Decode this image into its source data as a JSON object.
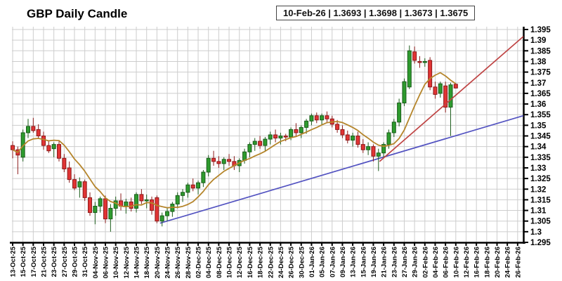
{
  "header": {
    "title": "GBP Daily Candle"
  },
  "quote_box": {
    "date": "10-Feb-26",
    "open": "1.3693",
    "high": "1.3698",
    "low": "1.3673",
    "close": "1.3675",
    "display": "10-Feb-26 | 1.3693 | 1.3698 | 1.3673 | 1.3675"
  },
  "chart_data": {
    "type": "candlestick",
    "title": "GBP Daily Candle",
    "grid": true,
    "y_axis": {
      "side": "right",
      "min": 1.295,
      "max": 1.395,
      "step": 0.005,
      "tick_labels": [
        "1.395",
        "1.39",
        "1.385",
        "1.38",
        "1.375",
        "1.37",
        "1.365",
        "1.36",
        "1.355",
        "1.35",
        "1.345",
        "1.34",
        "1.335",
        "1.33",
        "1.325",
        "1.32",
        "1.315",
        "1.31",
        "1.305",
        "1.3",
        "1.295"
      ]
    },
    "x_labels": [
      "13-Oct-25",
      "15-Oct-25",
      "17-Oct-25",
      "21-Oct-25",
      "23-Oct-25",
      "27-Oct-25",
      "29-Oct-25",
      "31-Oct-25",
      "04-Nov-25",
      "06-Nov-25",
      "10-Nov-25",
      "12-Nov-25",
      "14-Nov-25",
      "18-Nov-25",
      "20-Nov-25",
      "24-Nov-25",
      "26-Nov-25",
      "28-Nov-25",
      "02-Dec-25",
      "04-Dec-25",
      "08-Dec-25",
      "10-Dec-25",
      "12-Dec-25",
      "16-Dec-25",
      "18-Dec-25",
      "22-Dec-25",
      "24-Dec-25",
      "26-Dec-25",
      "30-Dec-25",
      "01-Jan-26",
      "05-Jan-26",
      "07-Jan-26",
      "09-Jan-26",
      "13-Jan-26",
      "15-Jan-26",
      "19-Jan-26",
      "21-Jan-26",
      "23-Jan-26",
      "27-Jan-26",
      "29-Jan-26",
      "02-Feb-26",
      "04-Feb-26",
      "06-Feb-26",
      "10-Feb-26",
      "12-Feb-26",
      "16-Feb-26",
      "18-Feb-26",
      "20-Feb-26",
      "24-Feb-26",
      "26-Feb-26"
    ],
    "x_labels_per_candles": 2,
    "candles_ohlc": [
      [
        1.3405,
        1.3425,
        1.3345,
        1.3385
      ],
      [
        1.3385,
        1.34,
        1.327,
        1.336
      ],
      [
        1.335,
        1.348,
        1.333,
        1.3465
      ],
      [
        1.3465,
        1.353,
        1.344,
        1.3495
      ],
      [
        1.3495,
        1.3535,
        1.3465,
        1.3475
      ],
      [
        1.348,
        1.3505,
        1.344,
        1.345
      ],
      [
        1.345,
        1.347,
        1.3385,
        1.3405
      ],
      [
        1.3405,
        1.343,
        1.337,
        1.338
      ],
      [
        1.339,
        1.342,
        1.335,
        1.341
      ],
      [
        1.341,
        1.3425,
        1.333,
        1.3345
      ],
      [
        1.3345,
        1.3365,
        1.328,
        1.3295
      ],
      [
        1.33,
        1.333,
        1.323,
        1.3245
      ],
      [
        1.3245,
        1.327,
        1.3195,
        1.3205
      ],
      [
        1.321,
        1.3255,
        1.316,
        1.3235
      ],
      [
        1.3235,
        1.3245,
        1.3145,
        1.316
      ],
      [
        1.316,
        1.3185,
        1.3075,
        1.309
      ],
      [
        1.309,
        1.314,
        1.3035,
        1.312
      ],
      [
        1.312,
        1.3165,
        1.309,
        1.3155
      ],
      [
        1.3155,
        1.317,
        1.304,
        1.306
      ],
      [
        1.306,
        1.313,
        1.3,
        1.311
      ],
      [
        1.311,
        1.3165,
        1.3075,
        1.3145
      ],
      [
        1.3145,
        1.318,
        1.31,
        1.312
      ],
      [
        1.312,
        1.3155,
        1.3085,
        1.314
      ],
      [
        1.314,
        1.316,
        1.3095,
        1.311
      ],
      [
        1.311,
        1.3185,
        1.309,
        1.3175
      ],
      [
        1.3175,
        1.32,
        1.313,
        1.3145
      ],
      [
        1.3145,
        1.3175,
        1.311,
        1.315
      ],
      [
        1.315,
        1.3165,
        1.308,
        1.31
      ],
      [
        1.316,
        1.317,
        1.304,
        1.305
      ],
      [
        1.305,
        1.309,
        1.3025,
        1.3075
      ],
      [
        1.3075,
        1.311,
        1.305,
        1.3095
      ],
      [
        1.3095,
        1.314,
        1.307,
        1.313
      ],
      [
        1.313,
        1.3185,
        1.311,
        1.317
      ],
      [
        1.317,
        1.32,
        1.314,
        1.3185
      ],
      [
        1.3185,
        1.323,
        1.316,
        1.322
      ],
      [
        1.322,
        1.325,
        1.319,
        1.3205
      ],
      [
        1.3205,
        1.324,
        1.3175,
        1.323
      ],
      [
        1.323,
        1.329,
        1.321,
        1.328
      ],
      [
        1.328,
        1.336,
        1.326,
        1.3345
      ],
      [
        1.3345,
        1.338,
        1.331,
        1.333
      ],
      [
        1.333,
        1.3355,
        1.33,
        1.332
      ],
      [
        1.332,
        1.335,
        1.329,
        1.334
      ],
      [
        1.334,
        1.3365,
        1.331,
        1.333
      ],
      [
        1.333,
        1.3355,
        1.329,
        1.331
      ],
      [
        1.331,
        1.3345,
        1.328,
        1.3335
      ],
      [
        1.3335,
        1.339,
        1.332,
        1.3375
      ],
      [
        1.3375,
        1.342,
        1.335,
        1.341
      ],
      [
        1.341,
        1.344,
        1.338,
        1.3425
      ],
      [
        1.3425,
        1.345,
        1.339,
        1.3405
      ],
      [
        1.3405,
        1.3445,
        1.338,
        1.3435
      ],
      [
        1.3435,
        1.347,
        1.341,
        1.3455
      ],
      [
        1.3455,
        1.348,
        1.342,
        1.344
      ],
      [
        1.344,
        1.3465,
        1.341,
        1.345
      ],
      [
        1.345,
        1.346,
        1.3425,
        1.3445
      ],
      [
        1.3445,
        1.349,
        1.343,
        1.348
      ],
      [
        1.348,
        1.351,
        1.345,
        1.3465
      ],
      [
        1.3465,
        1.35,
        1.344,
        1.349
      ],
      [
        1.349,
        1.353,
        1.346,
        1.352
      ],
      [
        1.352,
        1.3555,
        1.35,
        1.3545
      ],
      [
        1.3545,
        1.356,
        1.351,
        1.3525
      ],
      [
        1.3525,
        1.3555,
        1.35,
        1.3545
      ],
      [
        1.3545,
        1.3565,
        1.3515,
        1.353
      ],
      [
        1.353,
        1.3545,
        1.349,
        1.3505
      ],
      [
        1.3505,
        1.3525,
        1.3465,
        1.348
      ],
      [
        1.348,
        1.35,
        1.344,
        1.3455
      ],
      [
        1.3455,
        1.3475,
        1.3415,
        1.343
      ],
      [
        1.343,
        1.3465,
        1.34,
        1.345
      ],
      [
        1.345,
        1.347,
        1.3395,
        1.341
      ],
      [
        1.341,
        1.3435,
        1.337,
        1.3385
      ],
      [
        1.3385,
        1.342,
        1.336,
        1.34
      ],
      [
        1.34,
        1.341,
        1.333,
        1.3355
      ],
      [
        1.3355,
        1.339,
        1.3285,
        1.337
      ],
      [
        1.337,
        1.342,
        1.335,
        1.341
      ],
      [
        1.341,
        1.348,
        1.339,
        1.3465
      ],
      [
        1.3465,
        1.353,
        1.3445,
        1.3515
      ],
      [
        1.3515,
        1.3625,
        1.3495,
        1.3605
      ],
      [
        1.3605,
        1.372,
        1.359,
        1.3705
      ],
      [
        1.368,
        1.3875,
        1.367,
        1.385
      ],
      [
        1.3845,
        1.387,
        1.379,
        1.3805
      ],
      [
        1.38,
        1.3825,
        1.377,
        1.3795
      ],
      [
        1.3795,
        1.3815,
        1.3775,
        1.38
      ],
      [
        1.3805,
        1.382,
        1.3665,
        1.368
      ],
      [
        1.368,
        1.3705,
        1.3625,
        1.3645
      ],
      [
        1.365,
        1.3705,
        1.363,
        1.3695
      ],
      [
        1.3685,
        1.3705,
        1.356,
        1.3585
      ],
      [
        1.3585,
        1.37,
        1.345,
        1.369
      ],
      [
        1.3693,
        1.3698,
        1.3673,
        1.3675
      ]
    ],
    "overlays": {
      "moving_average": {
        "type": "sma",
        "period": 8,
        "color": "#b5852b"
      },
      "trendlines": [
        {
          "name": "support",
          "color": "#5353c1",
          "from": {
            "slot": 28.6,
            "value": 1.304
          },
          "to": {
            "slot": 99.1,
            "value": 1.3545
          }
        },
        {
          "name": "resistance",
          "color": "#bf4343",
          "from": {
            "slot": 71.2,
            "value": 1.333
          },
          "to": {
            "slot": 99.1,
            "value": 1.3917
          }
        }
      ]
    },
    "colors": {
      "up": "#2e9b2e",
      "up_border": "#1a5c1a",
      "down": "#e13434",
      "down_border": "#8b1a1a",
      "grid": "#cdcdcd",
      "axis": "#000000",
      "background": "#ffffff"
    }
  }
}
